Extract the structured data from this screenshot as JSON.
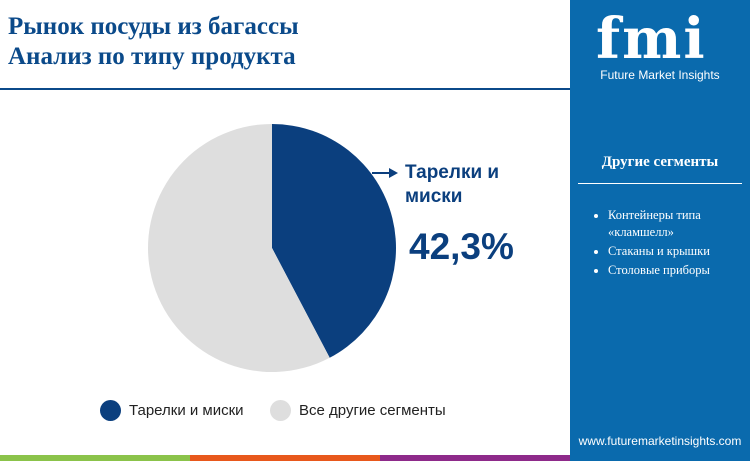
{
  "title": {
    "line1": "Рынок посуды из багассы",
    "line2": "Анализ по типу продукта"
  },
  "sidebar": {
    "logo": "fmi",
    "brand": "Future Market Insights",
    "segments_title": "Другие сегменты",
    "segments": [
      "Контейнеры типа «кламшелл»",
      "Стаканы и крышки",
      "Столовые приборы"
    ],
    "url": "www.futuremarketinsights.com",
    "bg": "#0a6aad"
  },
  "chart_data": {
    "type": "pie",
    "categories": [
      "Тарелки и миски",
      "Все другие сегменты"
    ],
    "values": [
      42.3,
      57.7
    ],
    "colors": [
      "#0b3f7e",
      "#dedede"
    ],
    "callout": {
      "label": "Тарелки и миски",
      "value": "42,3%"
    },
    "legend": "bottom"
  },
  "legend": {
    "items": [
      "Тарелки и миски",
      "Все другие сегменты"
    ]
  },
  "footer_colors": [
    "#8bc34a",
    "#e8581c",
    "#8e2a8a"
  ]
}
